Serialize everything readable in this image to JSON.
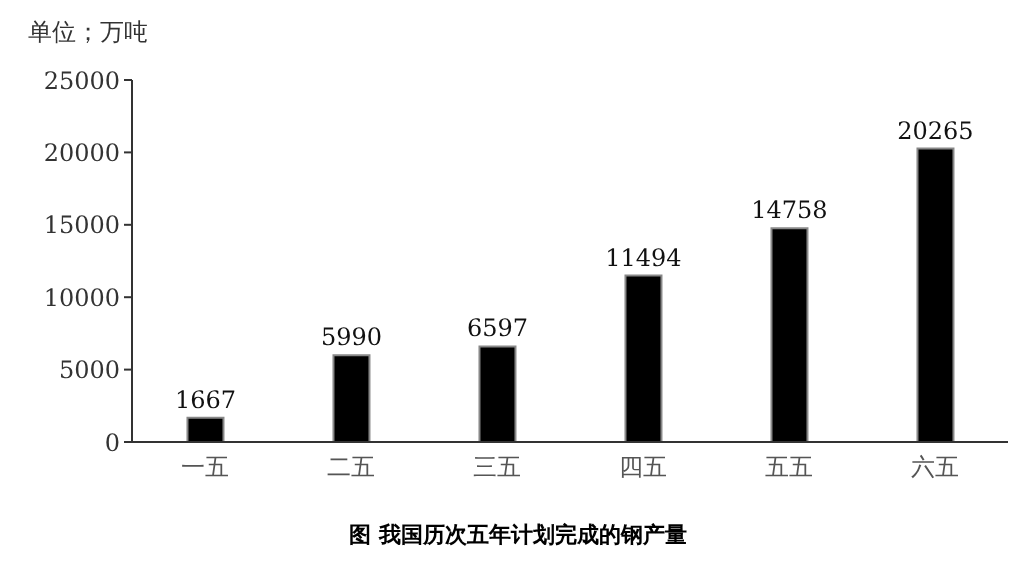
{
  "chart_data": {
    "type": "bar",
    "title": "图 我国历次五年计划完成的钢产量",
    "ylabel": "单位；万吨",
    "categories": [
      "一五",
      "二五",
      "三五",
      "四五",
      "五五",
      "六五"
    ],
    "values": [
      1667,
      5990,
      6597,
      11494,
      14758,
      20265
    ],
    "color": "#000000",
    "ylim": [
      0,
      25000
    ],
    "yticks": [
      0,
      5000,
      10000,
      15000,
      20000,
      25000
    ],
    "data_labels": true,
    "grid": false,
    "legend": false
  }
}
